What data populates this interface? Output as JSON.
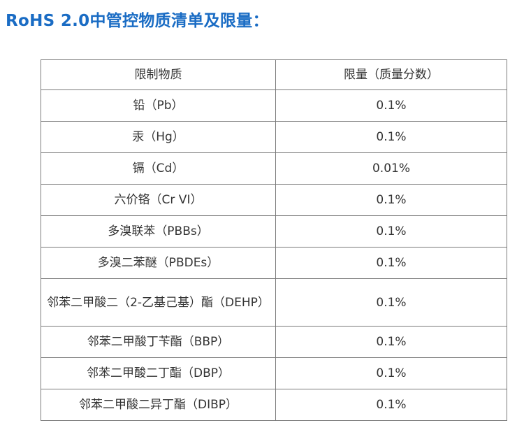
{
  "title": "RoHS 2.0中管控物质清单及限量：",
  "table": {
    "headers": {
      "substance": "限制物质",
      "limit": "限量（质量分数）"
    },
    "rows": [
      {
        "substance": "铅（Pb）",
        "limit": "0.1%"
      },
      {
        "substance": "汞（Hg）",
        "limit": "0.1%"
      },
      {
        "substance": "镉（Cd）",
        "limit": "0.01%"
      },
      {
        "substance": "六价铬（Cr VI）",
        "limit": "0.1%"
      },
      {
        "substance": "多溴联苯（PBBs）",
        "limit": "0.1%"
      },
      {
        "substance": "多溴二苯醚（PBDEs）",
        "limit": "0.1%"
      },
      {
        "substance": "邻苯二甲酸二（2-乙基己基）酯（DEHP）",
        "limit": "0.1%"
      },
      {
        "substance": "邻苯二甲酸丁苄酯（BBP）",
        "limit": "0.1%"
      },
      {
        "substance": "邻苯二甲酸二丁酯（DBP）",
        "limit": "0.1%"
      },
      {
        "substance": "邻苯二甲酸二异丁酯（DIBP）",
        "limit": "0.1%"
      }
    ]
  }
}
